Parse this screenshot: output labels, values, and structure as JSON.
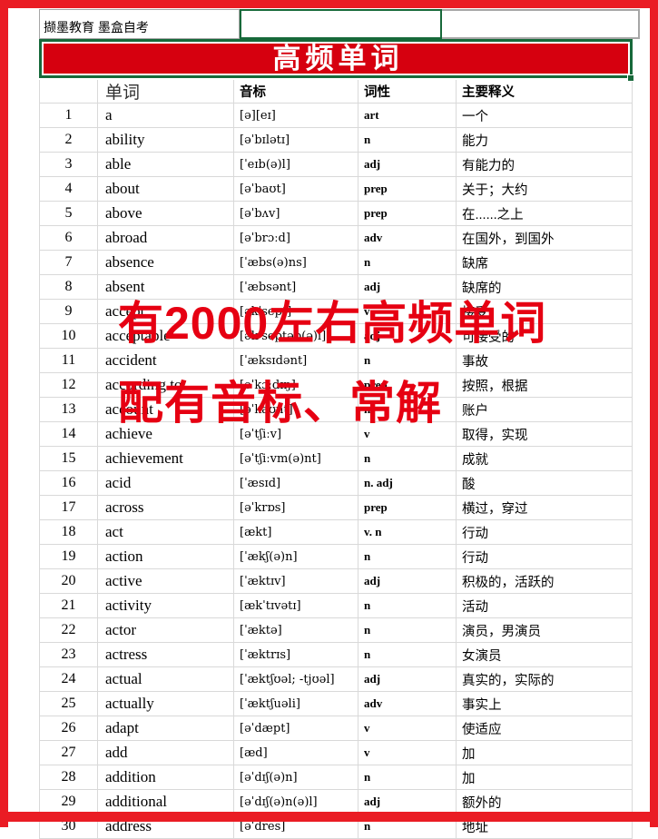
{
  "header": {
    "brand": "撷墨教育 墨盒自考",
    "banner_title": "高频单词"
  },
  "watermark": {
    "line1": "有2000左右高频单词",
    "line2": "配有音标、常解"
  },
  "table": {
    "columns": [
      "单词",
      "音标",
      "词性",
      "主要释义"
    ],
    "rows": [
      {
        "n": "1",
        "word": "a",
        "phonetic": "[ə][eɪ]",
        "pos": "art",
        "meaning": "一个"
      },
      {
        "n": "2",
        "word": "ability",
        "phonetic": "[əˈbɪlətɪ]",
        "pos": "n",
        "meaning": "能力"
      },
      {
        "n": "3",
        "word": "able",
        "phonetic": "[ˈeɪb(ə)l]",
        "pos": "adj",
        "meaning": "有能力的"
      },
      {
        "n": "4",
        "word": "about",
        "phonetic": "[əˈbaʊt]",
        "pos": "prep",
        "meaning": "关于；大约"
      },
      {
        "n": "5",
        "word": "above",
        "phonetic": "[əˈbʌv]",
        "pos": "prep",
        "meaning": "在......之上"
      },
      {
        "n": "6",
        "word": "abroad",
        "phonetic": "[əˈbrɔːd]",
        "pos": "adv",
        "meaning": "在国外，到国外"
      },
      {
        "n": "7",
        "word": "absence",
        "phonetic": "[ˈæbs(ə)ns]",
        "pos": "n",
        "meaning": "缺席"
      },
      {
        "n": "8",
        "word": "absent",
        "phonetic": "[ˈæbsənt]",
        "pos": "adj",
        "meaning": "缺席的"
      },
      {
        "n": "9",
        "word": "accept",
        "phonetic": "[əkˈsept]",
        "pos": "v",
        "meaning": "接受"
      },
      {
        "n": "10",
        "word": "acceptable",
        "phonetic": "[əkˈseptəb(ə)l]",
        "pos": "adj",
        "meaning": "可接受的"
      },
      {
        "n": "11",
        "word": "accident",
        "phonetic": "[ˈæksɪdənt]",
        "pos": "n",
        "meaning": "事故"
      },
      {
        "n": "12",
        "word": "according to",
        "phonetic": "[əˈkɔːdɪŋ]",
        "pos": "prep",
        "meaning": "按照，根据"
      },
      {
        "n": "13",
        "word": "account",
        "phonetic": "[əˈkaʊnt]",
        "pos": "n",
        "meaning": "账户"
      },
      {
        "n": "14",
        "word": "achieve",
        "phonetic": "[əˈtʃiːv]",
        "pos": "v",
        "meaning": "取得，实现"
      },
      {
        "n": "15",
        "word": "achievement",
        "phonetic": "[əˈtʃiːvm(ə)nt]",
        "pos": "n",
        "meaning": "成就"
      },
      {
        "n": "16",
        "word": "acid",
        "phonetic": "[ˈæsɪd]",
        "pos": "n. adj",
        "meaning": "酸"
      },
      {
        "n": "17",
        "word": "across",
        "phonetic": "[əˈkrɒs]",
        "pos": "prep",
        "meaning": "横过，穿过"
      },
      {
        "n": "18",
        "word": "act",
        "phonetic": "[ækt]",
        "pos": "v. n",
        "meaning": "行动"
      },
      {
        "n": "19",
        "word": "action",
        "phonetic": "[ˈækʃ(ə)n]",
        "pos": "n",
        "meaning": "行动"
      },
      {
        "n": "20",
        "word": "active",
        "phonetic": "[ˈæktɪv]",
        "pos": "adj",
        "meaning": "积极的，活跃的"
      },
      {
        "n": "21",
        "word": "activity",
        "phonetic": "[ækˈtɪvətɪ]",
        "pos": "n",
        "meaning": "活动"
      },
      {
        "n": "22",
        "word": "actor",
        "phonetic": "[ˈæktə]",
        "pos": "n",
        "meaning": "演员，男演员"
      },
      {
        "n": "23",
        "word": "actress",
        "phonetic": "[ˈæktrɪs]",
        "pos": "n",
        "meaning": "女演员"
      },
      {
        "n": "24",
        "word": "actual",
        "phonetic": "[ˈæktʃʊəl; -tjʊəl]",
        "pos": "adj",
        "meaning": "真实的，实际的"
      },
      {
        "n": "25",
        "word": "actually",
        "phonetic": "[ˈæktʃuəli]",
        "pos": "adv",
        "meaning": "事实上"
      },
      {
        "n": "26",
        "word": "adapt",
        "phonetic": "[əˈdæpt]",
        "pos": "v",
        "meaning": "使适应"
      },
      {
        "n": "27",
        "word": "add",
        "phonetic": "[æd]",
        "pos": "v",
        "meaning": "加"
      },
      {
        "n": "28",
        "word": "addition",
        "phonetic": "[əˈdɪʃ(ə)n]",
        "pos": "n",
        "meaning": "加"
      },
      {
        "n": "29",
        "word": "additional",
        "phonetic": "[əˈdɪʃ(ə)n(ə)l]",
        "pos": "adj",
        "meaning": "额外的"
      },
      {
        "n": "30",
        "word": "address",
        "phonetic": "[əˈdres]",
        "pos": "n",
        "meaning": "地址"
      }
    ]
  },
  "colors": {
    "frame_red": "#ea1c24",
    "banner_red": "#d6000f",
    "watermark_red": "#e60012",
    "selection_green": "#17693a",
    "grid_gray": "#d9d9d9"
  }
}
